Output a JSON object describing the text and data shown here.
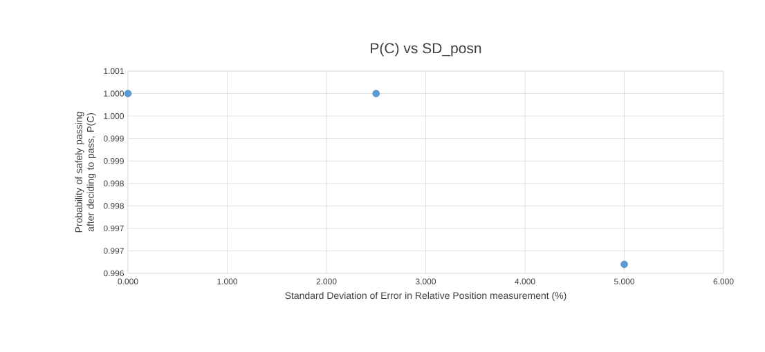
{
  "chart_data": {
    "type": "scatter",
    "title": "P(C) vs SD_posn",
    "xlabel": "Standard Deviation of Error in Relative Position measurement (%)",
    "ylabel": "Probability of safely passing after deciding to pass, P(C)",
    "x": [
      0,
      2.5,
      5
    ],
    "series": [
      {
        "color": "#5b9bd5",
        "values": [
          1.0,
          1.0,
          0.9962
        ]
      }
    ],
    "xlim": [
      0,
      6
    ],
    "xticks": [
      {
        "value": 0,
        "label": "0.000"
      },
      {
        "value": 1,
        "label": "1.000"
      },
      {
        "value": 2,
        "label": "2.000"
      },
      {
        "value": 3,
        "label": "3.000"
      },
      {
        "value": 4,
        "label": "4.000"
      },
      {
        "value": 5,
        "label": "5.000"
      },
      {
        "value": 6,
        "label": "6.000"
      }
    ],
    "ylim": [
      0.996,
      1.0005
    ],
    "yticks": [
      {
        "value": 0.996,
        "label": "0.996"
      },
      {
        "value": 0.9965,
        "label": "0.997"
      },
      {
        "value": 0.997,
        "label": "0.997"
      },
      {
        "value": 0.9975,
        "label": "0.998"
      },
      {
        "value": 0.998,
        "label": "0.998"
      },
      {
        "value": 0.9985,
        "label": "0.999"
      },
      {
        "value": 0.999,
        "label": "0.999"
      },
      {
        "value": 0.9995,
        "label": "1.000"
      },
      {
        "value": 1.0,
        "label": "1.000"
      },
      {
        "value": 1.0005,
        "label": "1.001"
      }
    ],
    "grid": true,
    "marker": "circle"
  }
}
